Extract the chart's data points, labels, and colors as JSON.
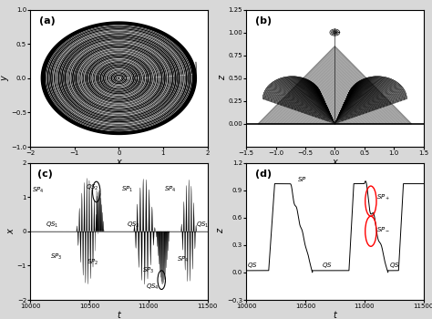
{
  "fig_bg": "#d8d8d8",
  "panel_bg": "#ffffff",
  "panel_a": {
    "label": "(a)",
    "xlabel": "x",
    "ylabel": "y",
    "xlim": [
      -2,
      2
    ],
    "ylim": [
      -1.0,
      1.0
    ],
    "xticks": [
      -2,
      -1,
      0,
      1,
      2
    ],
    "yticks": [
      -1.0,
      -0.5,
      0.0,
      0.5,
      1.0
    ]
  },
  "panel_b": {
    "label": "(b)",
    "xlabel": "x",
    "ylabel": "z",
    "xlim": [
      -1.5,
      1.5
    ],
    "ylim": [
      -0.25,
      1.25
    ],
    "xticks": [
      -1.5,
      -1.0,
      -0.5,
      0.0,
      0.5,
      1.0,
      1.5
    ],
    "yticks": [
      0.0,
      0.25,
      0.5,
      0.75,
      1.0,
      1.25
    ]
  },
  "panel_c": {
    "label": "(c)",
    "xlabel": "t",
    "ylabel": "x",
    "xlim": [
      10000,
      11500
    ],
    "ylim": [
      -2,
      2
    ],
    "xticks": [
      10000,
      10500,
      11000,
      11500
    ],
    "yticks": [
      -2,
      -1,
      0,
      1,
      2
    ]
  },
  "panel_d": {
    "label": "(d)",
    "xlabel": "t",
    "ylabel": "z",
    "xlim": [
      10000,
      11500
    ],
    "ylim": [
      -0.3,
      1.2
    ],
    "xticks": [
      10000,
      10500,
      11000,
      11500
    ],
    "yticks": [
      -0.3,
      0.0,
      0.3,
      0.6,
      0.9,
      1.2
    ]
  }
}
